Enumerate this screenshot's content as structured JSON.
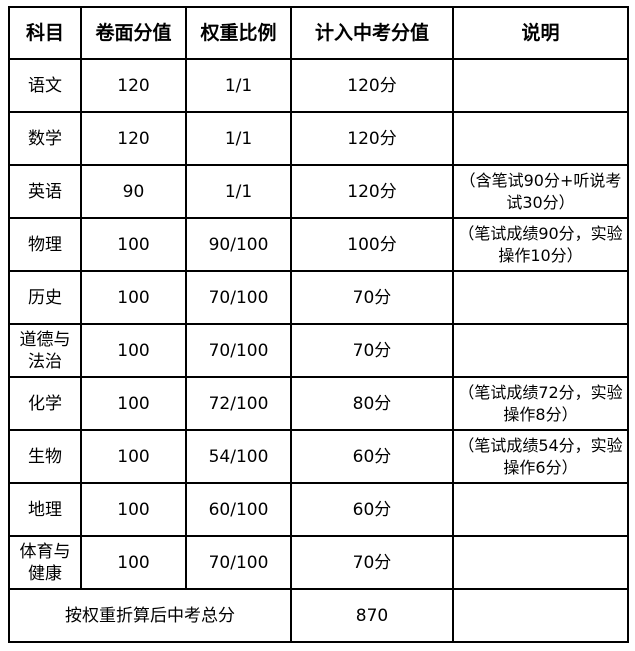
{
  "headers": [
    "科目",
    "卷面分值",
    "权重比例",
    "计入中考分值",
    "说明"
  ],
  "rows": [
    {
      "subject": "语文",
      "raw": "120",
      "weight": "1/1",
      "score": "120分",
      "note": ""
    },
    {
      "subject": "数学",
      "raw": "120",
      "weight": "1/1",
      "score": "120分",
      "note": ""
    },
    {
      "subject": "英语",
      "raw": "90",
      "weight": "1/1",
      "score": "120分",
      "note": "（含笔试90分+听说考试30分）"
    },
    {
      "subject": "物理",
      "raw": "100",
      "weight": "90/100",
      "score": "100分",
      "note": "（笔试成绩90分，实验操作10分）"
    },
    {
      "subject": "历史",
      "raw": "100",
      "weight": "70/100",
      "score": "70分",
      "note": ""
    },
    {
      "subject": "道德与法治",
      "raw": "100",
      "weight": "70/100",
      "score": "70分",
      "note": ""
    },
    {
      "subject": "化学",
      "raw": "100",
      "weight": "72/100",
      "score": "80分",
      "note": "（笔试成绩72分，实验操作8分）"
    },
    {
      "subject": "生物",
      "raw": "100",
      "weight": "54/100",
      "score": "60分",
      "note": "（笔试成绩54分，实验操作6分）"
    },
    {
      "subject": "地理",
      "raw": "100",
      "weight": "60/100",
      "score": "60分",
      "note": ""
    },
    {
      "subject": "体育与健康",
      "raw": "100",
      "weight": "70/100",
      "score": "70分",
      "note": ""
    }
  ],
  "total": {
    "label": "按权重折算后中考总分",
    "value": "870",
    "note": ""
  }
}
